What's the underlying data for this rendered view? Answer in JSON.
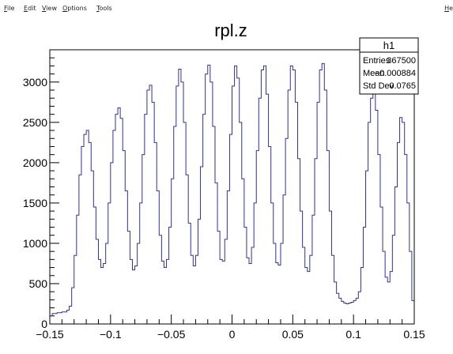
{
  "menubar": {
    "items": [
      {
        "label": "File",
        "accel": "F",
        "rest": "ile"
      },
      {
        "label": "Edit",
        "accel": "E",
        "rest": "dit"
      },
      {
        "label": "View",
        "accel": "V",
        "rest": "iew"
      },
      {
        "label": "Options",
        "accel": "O",
        "rest": "ptions"
      },
      {
        "label": "Tools",
        "accel": "T",
        "rest": "ools"
      }
    ],
    "right_item": {
      "label": "Help",
      "accel": "H",
      "rest": "e"
    }
  },
  "stats_box": {
    "name": "h1",
    "rows": [
      {
        "label": "Entries",
        "value": "367500"
      },
      {
        "label": "Mean",
        "value": "−0.000884"
      },
      {
        "label": "Std Dev",
        "value": "0.0765"
      }
    ]
  },
  "chart_data": {
    "type": "histogram",
    "title": "rpl.z",
    "xlabel": "",
    "ylabel": "",
    "xlim": [
      -0.15,
      0.15
    ],
    "ylim": [
      0,
      3400
    ],
    "x_ticks": [
      -0.15,
      -0.1,
      -0.05,
      0,
      0.05,
      0.1,
      0.15
    ],
    "x_tick_labels": [
      "−0.15",
      "−0.1",
      "−0.05",
      "0",
      "0.05",
      "0.1",
      "0.15"
    ],
    "y_ticks": [
      0,
      500,
      1000,
      1500,
      2000,
      2500,
      3000
    ],
    "y_tick_labels": [
      "0",
      "500",
      "1000",
      "1500",
      "2000",
      "2500",
      "3000"
    ],
    "line_color": "#3030a0",
    "bin_width": 0.002,
    "bins": [
      [
        -0.149,
        100
      ],
      [
        -0.147,
        130
      ],
      [
        -0.145,
        130
      ],
      [
        -0.143,
        140
      ],
      [
        -0.141,
        140
      ],
      [
        -0.139,
        150
      ],
      [
        -0.137,
        150
      ],
      [
        -0.135,
        170
      ],
      [
        -0.133,
        220
      ],
      [
        -0.131,
        450
      ],
      [
        -0.129,
        850
      ],
      [
        -0.127,
        1350
      ],
      [
        -0.125,
        1850
      ],
      [
        -0.123,
        2200
      ],
      [
        -0.121,
        2350
      ],
      [
        -0.119,
        2400
      ],
      [
        -0.117,
        2250
      ],
      [
        -0.115,
        1900
      ],
      [
        -0.113,
        1450
      ],
      [
        -0.111,
        1050
      ],
      [
        -0.109,
        800
      ],
      [
        -0.107,
        700
      ],
      [
        -0.105,
        750
      ],
      [
        -0.103,
        1000
      ],
      [
        -0.101,
        1500
      ],
      [
        -0.099,
        2000
      ],
      [
        -0.097,
        2400
      ],
      [
        -0.095,
        2600
      ],
      [
        -0.093,
        2680
      ],
      [
        -0.091,
        2550
      ],
      [
        -0.089,
        2150
      ],
      [
        -0.087,
        1650
      ],
      [
        -0.085,
        1150
      ],
      [
        -0.083,
        800
      ],
      [
        -0.081,
        670
      ],
      [
        -0.079,
        720
      ],
      [
        -0.077,
        1000
      ],
      [
        -0.075,
        1500
      ],
      [
        -0.073,
        2100
      ],
      [
        -0.071,
        2600
      ],
      [
        -0.069,
        2900
      ],
      [
        -0.067,
        2960
      ],
      [
        -0.065,
        2750
      ],
      [
        -0.063,
        2250
      ],
      [
        -0.061,
        1650
      ],
      [
        -0.059,
        1100
      ],
      [
        -0.057,
        780
      ],
      [
        -0.055,
        700
      ],
      [
        -0.053,
        800
      ],
      [
        -0.051,
        1200
      ],
      [
        -0.049,
        1800
      ],
      [
        -0.047,
        2450
      ],
      [
        -0.045,
        2950
      ],
      [
        -0.043,
        3160
      ],
      [
        -0.041,
        3000
      ],
      [
        -0.039,
        2500
      ],
      [
        -0.037,
        1850
      ],
      [
        -0.035,
        1250
      ],
      [
        -0.033,
        850
      ],
      [
        -0.031,
        720
      ],
      [
        -0.029,
        850
      ],
      [
        -0.027,
        1300
      ],
      [
        -0.025,
        1950
      ],
      [
        -0.023,
        2600
      ],
      [
        -0.021,
        3100
      ],
      [
        -0.019,
        3210
      ],
      [
        -0.017,
        3000
      ],
      [
        -0.015,
        2450
      ],
      [
        -0.013,
        1750
      ],
      [
        -0.011,
        1150
      ],
      [
        -0.009,
        800
      ],
      [
        -0.007,
        780
      ],
      [
        -0.005,
        1050
      ],
      [
        -0.003,
        1650
      ],
      [
        -0.001,
        2350
      ],
      [
        0.001,
        2950
      ],
      [
        0.003,
        3200
      ],
      [
        0.005,
        3050
      ],
      [
        0.007,
        2500
      ],
      [
        0.009,
        1800
      ],
      [
        0.011,
        1200
      ],
      [
        0.013,
        820
      ],
      [
        0.015,
        750
      ],
      [
        0.017,
        950
      ],
      [
        0.019,
        1500
      ],
      [
        0.021,
        2150
      ],
      [
        0.023,
        2800
      ],
      [
        0.025,
        3150
      ],
      [
        0.027,
        3200
      ],
      [
        0.029,
        2850
      ],
      [
        0.031,
        2200
      ],
      [
        0.033,
        1500
      ],
      [
        0.035,
        1000
      ],
      [
        0.037,
        760
      ],
      [
        0.039,
        730
      ],
      [
        0.041,
        1000
      ],
      [
        0.043,
        1600
      ],
      [
        0.045,
        2300
      ],
      [
        0.047,
        2900
      ],
      [
        0.049,
        3200
      ],
      [
        0.051,
        3150
      ],
      [
        0.053,
        2750
      ],
      [
        0.055,
        2050
      ],
      [
        0.057,
        1400
      ],
      [
        0.059,
        950
      ],
      [
        0.061,
        700
      ],
      [
        0.063,
        650
      ],
      [
        0.065,
        850
      ],
      [
        0.067,
        1350
      ],
      [
        0.069,
        2050
      ],
      [
        0.071,
        2750
      ],
      [
        0.073,
        3150
      ],
      [
        0.075,
        3230
      ],
      [
        0.077,
        2900
      ],
      [
        0.079,
        2150
      ],
      [
        0.081,
        1400
      ],
      [
        0.083,
        850
      ],
      [
        0.085,
        520
      ],
      [
        0.087,
        380
      ],
      [
        0.089,
        320
      ],
      [
        0.091,
        280
      ],
      [
        0.093,
        260
      ],
      [
        0.095,
        250
      ],
      [
        0.097,
        260
      ],
      [
        0.099,
        270
      ],
      [
        0.101,
        290
      ],
      [
        0.103,
        320
      ],
      [
        0.105,
        400
      ],
      [
        0.107,
        700
      ],
      [
        0.109,
        1200
      ],
      [
        0.111,
        1900
      ],
      [
        0.113,
        2500
      ],
      [
        0.115,
        2800
      ],
      [
        0.117,
        2900
      ],
      [
        0.119,
        2650
      ],
      [
        0.121,
        2100
      ],
      [
        0.123,
        1450
      ],
      [
        0.125,
        900
      ],
      [
        0.127,
        580
      ],
      [
        0.129,
        520
      ],
      [
        0.131,
        650
      ],
      [
        0.133,
        1100
      ],
      [
        0.135,
        1700
      ],
      [
        0.137,
        2250
      ],
      [
        0.139,
        2560
      ],
      [
        0.141,
        2500
      ],
      [
        0.143,
        2100
      ],
      [
        0.145,
        1500
      ],
      [
        0.147,
        900
      ],
      [
        0.149,
        290
      ]
    ]
  }
}
